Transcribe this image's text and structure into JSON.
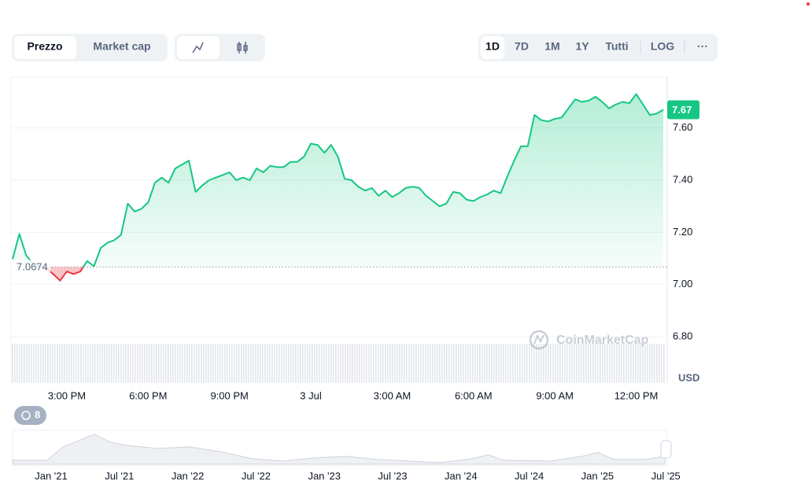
{
  "toolbar": {
    "tabs": [
      "Prezzo",
      "Market cap"
    ],
    "ranges": [
      "1D",
      "7D",
      "1M",
      "1Y",
      "Tutti",
      "LOG",
      "···"
    ]
  },
  "chart_data": {
    "type": "line",
    "categories": [
      null,
      null,
      null,
      null,
      null,
      null,
      null,
      null,
      "3:00 PM",
      null,
      null,
      null,
      null,
      null,
      null,
      null,
      null,
      null,
      null,
      null,
      "6:00 PM",
      null,
      null,
      null,
      null,
      null,
      null,
      null,
      null,
      null,
      null,
      null,
      "9:00 PM",
      null,
      null,
      null,
      null,
      null,
      null,
      null,
      null,
      null,
      null,
      null,
      "3 Jul",
      null,
      null,
      null,
      null,
      null,
      null,
      null,
      null,
      null,
      null,
      null,
      "3:00 AM",
      null,
      null,
      null,
      null,
      null,
      null,
      null,
      null,
      null,
      null,
      null,
      "6:00 AM",
      null,
      null,
      null,
      null,
      null,
      null,
      null,
      null,
      null,
      null,
      null,
      "9:00 AM",
      null,
      null,
      null,
      null,
      null,
      null,
      null,
      null,
      null,
      null,
      null,
      "12:00 PM",
      null,
      null,
      null,
      null
    ],
    "values": [
      7.097,
      7.194,
      7.112,
      7.08,
      7.07,
      7.06,
      7.04,
      7.015,
      7.05,
      7.04,
      7.05,
      7.09,
      7.07,
      7.14,
      7.16,
      7.17,
      7.19,
      7.31,
      7.28,
      7.29,
      7.315,
      7.39,
      7.41,
      7.39,
      7.445,
      7.46,
      7.475,
      7.355,
      7.38,
      7.4,
      7.41,
      7.42,
      7.43,
      7.4,
      7.41,
      7.4,
      7.445,
      7.43,
      7.455,
      7.45,
      7.45,
      7.47,
      7.47,
      7.49,
      7.54,
      7.535,
      7.505,
      7.535,
      7.49,
      7.405,
      7.4,
      7.375,
      7.36,
      7.37,
      7.34,
      7.36,
      7.335,
      7.35,
      7.37,
      7.375,
      7.37,
      7.34,
      7.32,
      7.3,
      7.31,
      7.355,
      7.35,
      7.325,
      7.32,
      7.335,
      7.345,
      7.36,
      7.35,
      7.415,
      7.475,
      7.53,
      7.53,
      7.65,
      7.63,
      7.625,
      7.635,
      7.64,
      7.675,
      7.71,
      7.7,
      7.705,
      7.72,
      7.7,
      7.675,
      7.69,
      7.7,
      7.695,
      7.73,
      7.69,
      7.65,
      7.655,
      7.67
    ],
    "up_color": "#16c784",
    "down_color": "#ea3943",
    "reference_value": 7.0674,
    "current_price": 7.67,
    "ylim": [
      6.625,
      7.795
    ],
    "yticks": [
      {
        "value": 6.8,
        "label": "6.80"
      },
      {
        "value": 7.0,
        "label": "7.00"
      },
      {
        "value": 7.2,
        "label": "7.20"
      },
      {
        "value": 7.4,
        "label": "7.40"
      },
      {
        "value": 7.6,
        "label": "7.60"
      }
    ],
    "y_label": "USD",
    "grid": true,
    "watermark": "CoinMarketCap"
  },
  "badge": 8,
  "navigator": {
    "labels": [
      "Jan '21",
      "Jul '21",
      "Jan '22",
      "Jul '22",
      "Jan '23",
      "Jul '23",
      "Jan '24",
      "Jul '24",
      "Jan '25",
      "Jul '25"
    ]
  }
}
